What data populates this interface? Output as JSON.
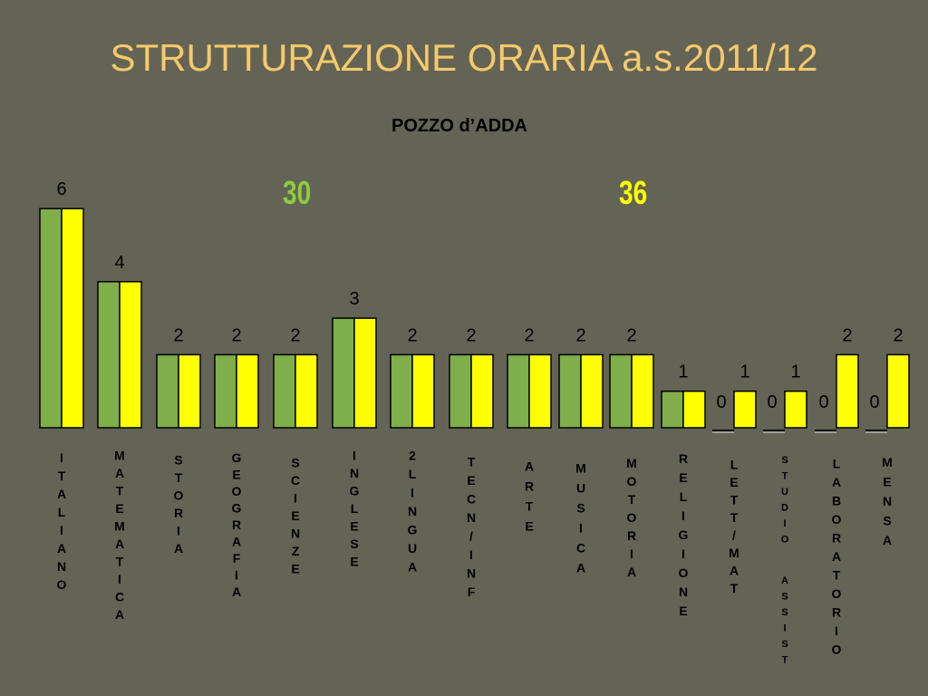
{
  "title": "STRUTTURAZIONE ORARIA a.s.2011/12",
  "subtitle": "POZZO d’ADDA",
  "totals": [
    "30",
    "36"
  ],
  "colors": {
    "background": "#636455",
    "series_a": "#7FAF4A",
    "series_b": "#FFFF00",
    "title": "#F6C96B",
    "total_a": "#8DCB41",
    "total_b": "#FFFF00"
  },
  "chart_data": {
    "type": "bar",
    "categories": [
      "ITALIANO",
      "MATEMATICA",
      "STORIA",
      "GEOGRAFIA",
      "SCIENZE",
      "INGLESE",
      "2LINGUA",
      "TECN/INF",
      "ARTE",
      "MUSICA",
      "MOTORIA",
      "RELIGIONE",
      "LETT/MAT",
      "STUDIO ASSIST",
      "LABORATORIO",
      "MENSA"
    ],
    "series": [
      {
        "values": [
          6,
          4,
          2,
          2,
          2,
          3,
          2,
          2,
          2,
          2,
          2,
          1,
          0,
          0,
          0,
          0
        ]
      },
      {
        "values": [
          6,
          4,
          2,
          2,
          2,
          3,
          2,
          2,
          2,
          2,
          2,
          1,
          1,
          1,
          2,
          2
        ]
      }
    ],
    "value_labels": [
      "6",
      "4",
      "2",
      "2",
      "2",
      "3",
      "2",
      "2",
      "2",
      "2",
      "2",
      "1",
      "1",
      "1",
      "2",
      "2"
    ],
    "zero_labels": [
      "0",
      "0",
      "0",
      "0"
    ],
    "ylim": [
      0,
      6
    ]
  }
}
